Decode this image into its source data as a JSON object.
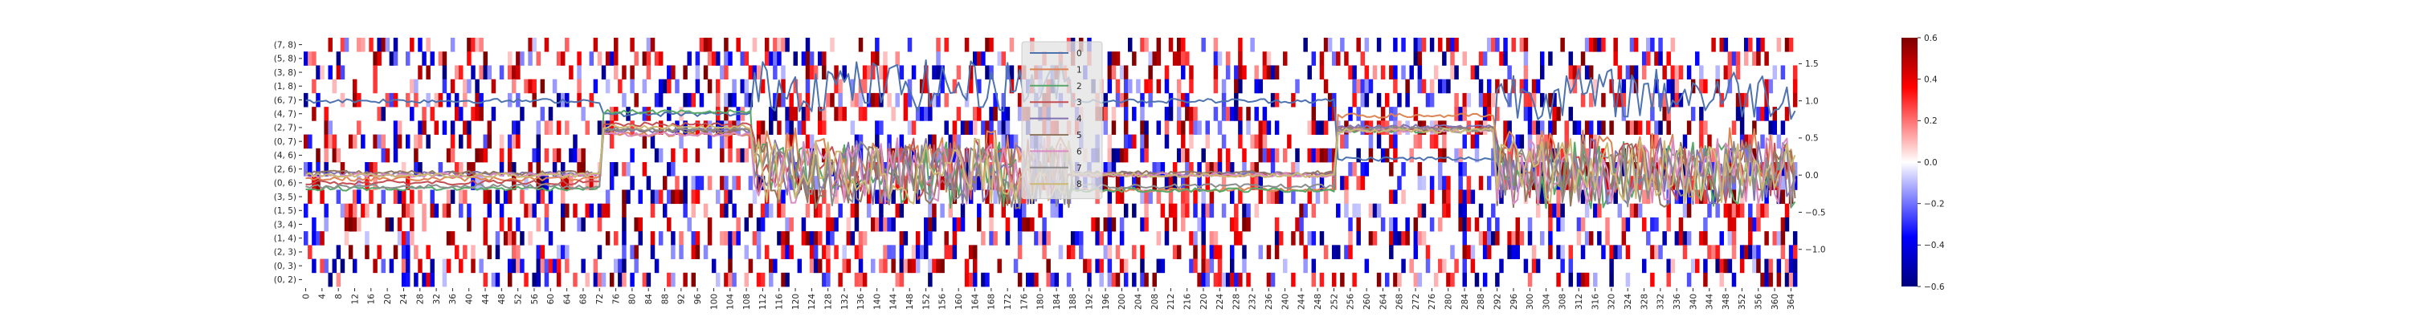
{
  "chart_data": {
    "type": "heatmap",
    "title": "",
    "xlabel": "",
    "ylabel": "",
    "heatmap": {
      "row_labels": [
        "(7, 8)",
        "(5, 8)",
        "(3, 8)",
        "(1, 8)",
        "(6, 7)",
        "(4, 7)",
        "(2, 7)",
        "(0, 7)",
        "(4, 6)",
        "(2, 6)",
        "(0, 6)",
        "(3, 5)",
        "(1, 5)",
        "(3, 4)",
        "(1, 4)",
        "(2, 3)",
        "(0, 3)",
        "(0, 2)"
      ],
      "n_columns": 366,
      "x_tick_step": 4,
      "x_tick_labels": [
        "0",
        "4",
        "8",
        "12",
        "16",
        "20",
        "24",
        "28",
        "32",
        "36",
        "40",
        "44",
        "48",
        "52",
        "56",
        "60",
        "64",
        "68",
        "72",
        "76",
        "80",
        "84",
        "88",
        "92",
        "96",
        "100",
        "104",
        "108",
        "112",
        "116",
        "120",
        "124",
        "128",
        "132",
        "136",
        "140",
        "144",
        "148",
        "152",
        "156",
        "160",
        "164",
        "168",
        "172",
        "176",
        "180",
        "184",
        "188",
        "192",
        "196",
        "200",
        "204",
        "208",
        "212",
        "216",
        "220",
        "224",
        "228",
        "232",
        "236",
        "240",
        "244",
        "248",
        "252",
        "256",
        "260",
        "264",
        "268",
        "272",
        "276",
        "280",
        "284",
        "288",
        "292",
        "296",
        "300",
        "304",
        "308",
        "312",
        "316",
        "320",
        "324",
        "328",
        "332",
        "336",
        "340",
        "344",
        "348",
        "352",
        "356",
        "360",
        "364"
      ],
      "colormap": "diverging blue-white-red",
      "vmin": -0.6,
      "vmax": 0.6,
      "colorbar_ticks": [
        "0.6",
        "0.4",
        "0.2",
        "0.0",
        "−0.2",
        "−0.4",
        "−0.6"
      ],
      "values_note": "sparse cell values; most cells ~0"
    },
    "line_overlay": {
      "type": "line",
      "y_axis_side": "right",
      "ylim": [
        -1.5,
        1.85
      ],
      "y_ticks": [
        "1.5",
        "1.0",
        "0.5",
        "0.0",
        "−0.5",
        "−1.0"
      ],
      "legend_position": "top-center",
      "series": [
        {
          "name": "0",
          "color": "#4c72b0"
        },
        {
          "name": "1",
          "color": "#dd8452"
        },
        {
          "name": "2",
          "color": "#55a868"
        },
        {
          "name": "3",
          "color": "#c44e52"
        },
        {
          "name": "4",
          "color": "#8172b3"
        },
        {
          "name": "5",
          "color": "#937860"
        },
        {
          "name": "6",
          "color": "#da8bc3"
        },
        {
          "name": "7",
          "color": "#8c8c8c"
        },
        {
          "name": "8",
          "color": "#ccb974"
        }
      ],
      "segments": [
        {
          "from": 0,
          "to": 73,
          "levels": [
            1.0,
            -0.05,
            -0.18,
            -0.1,
            0.02,
            0.03,
            0.0,
            -0.15,
            0.0
          ]
        },
        {
          "from": 73,
          "to": 110,
          "levels": [
            0.82,
            0.55,
            0.85,
            0.68,
            0.6,
            0.6,
            0.55,
            0.62,
            0.65
          ]
        },
        {
          "from": 110,
          "to": 188,
          "levels": [
            1.2,
            0.2,
            0.0,
            0.05,
            0.05,
            0.0,
            0.05,
            0.0,
            0.05
          ]
        },
        {
          "from": 188,
          "to": 253,
          "levels": [
            1.0,
            -0.2,
            -0.2,
            0.0,
            0.02,
            0.03,
            0.0,
            -0.15,
            0.0
          ]
        },
        {
          "from": 253,
          "to": 292,
          "levels": [
            0.22,
            0.8,
            0.6,
            0.62,
            0.65,
            0.62,
            0.6,
            0.62,
            0.6
          ]
        },
        {
          "from": 292,
          "to": 366,
          "levels": [
            1.1,
            0.2,
            0.0,
            0.05,
            0.05,
            0.0,
            0.05,
            0.0,
            0.05
          ]
        }
      ]
    }
  }
}
